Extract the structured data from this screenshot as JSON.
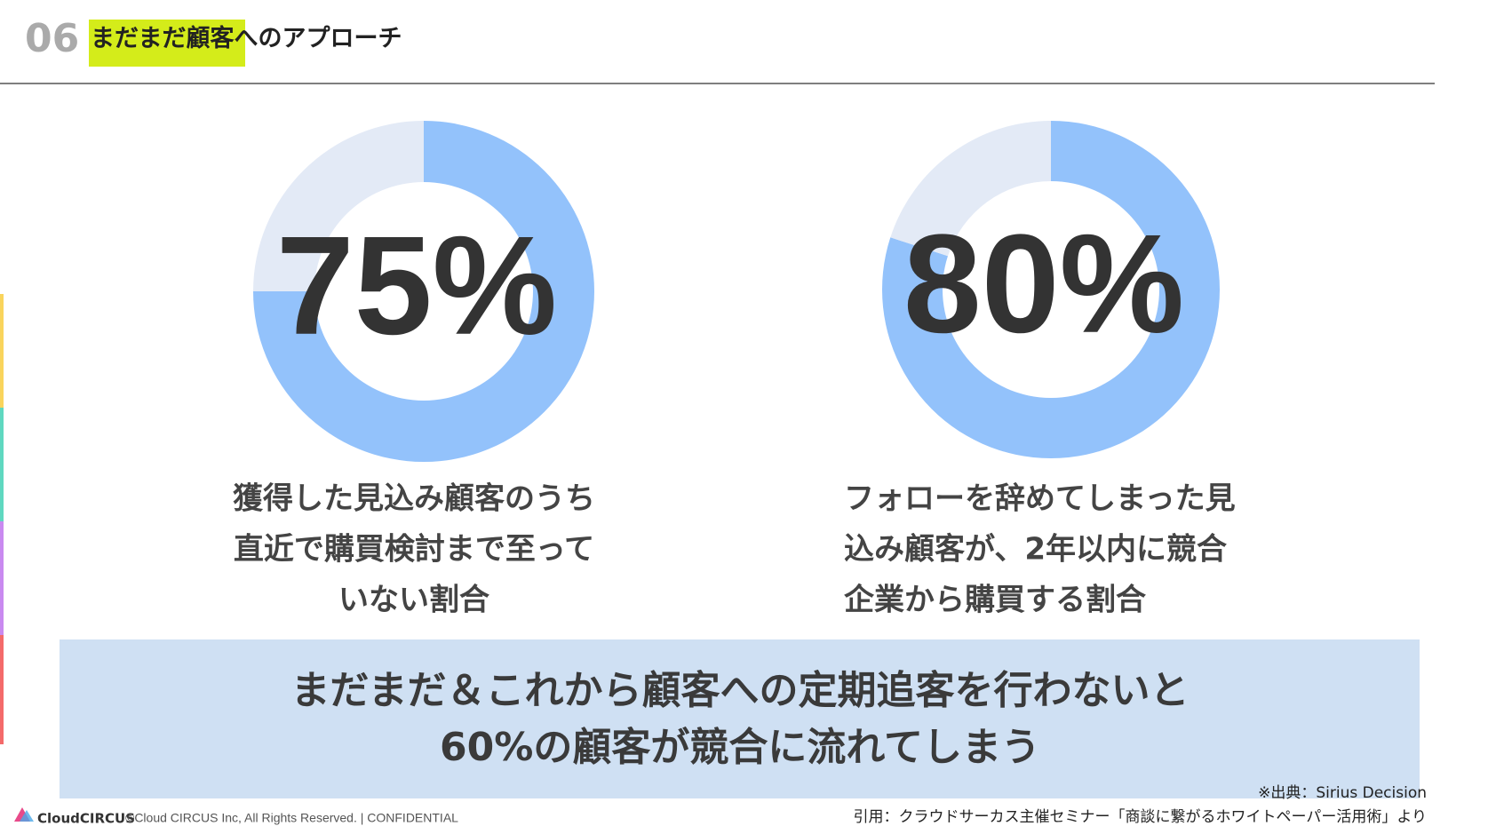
{
  "header": {
    "number": "06",
    "title_highlight": "まだまだ顧客",
    "title_rest": "へのアプローチ"
  },
  "chart_data": [
    {
      "type": "pie",
      "donut": true,
      "values": [
        75,
        25
      ],
      "value_labels": [
        "75%",
        null
      ],
      "colors": [
        "#93c2fb",
        "#e3eaf6"
      ],
      "description": [
        "獲得した見込み顧客のうち",
        "直近で購買検討まで至って",
        "いない割合"
      ],
      "align": "center"
    },
    {
      "type": "pie",
      "donut": true,
      "values": [
        80,
        20
      ],
      "value_labels": [
        "80%",
        null
      ],
      "colors": [
        "#93c2fb",
        "#e3eaf6"
      ],
      "description": [
        "フォローを辞めてしまった見",
        "込み顧客が、2年以内に競合",
        "企業から購買する割合"
      ],
      "align": "left"
    }
  ],
  "banner": [
    "まだまだ＆これから顧客への定期追客を行わないと",
    "60%の顧客が競合に流れてしまう"
  ],
  "source": "※出典：Sirius Decision",
  "footer": {
    "logo": "CloudCIRCUS",
    "copyright": "©Cloud CIRCUS Inc, All Rights Reserved. | CONFIDENTIAL",
    "citation": "引用：クラウドサーカス主催セミナー「商談に繋がるホワイトペーパー活用術」より"
  }
}
